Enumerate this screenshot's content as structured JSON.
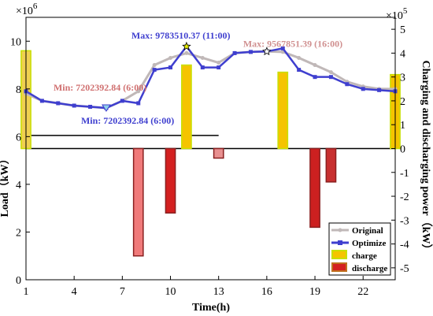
{
  "chart_data": {
    "type": "line+bar",
    "title": "",
    "xlabel": "Time(h)",
    "ylabel_left": "Load（kW）",
    "ylabel_right": "Charging and discharging power（kW）",
    "left_exponent": "×10",
    "left_exponent_power": "6",
    "right_exponent": "×10",
    "right_exponent_power": "5",
    "xlim": [
      1,
      24
    ],
    "ylim_left": [
      0,
      11
    ],
    "ylim_right": [
      -5.5,
      5.5
    ],
    "x_ticks": [
      1,
      4,
      7,
      10,
      13,
      16,
      19,
      22
    ],
    "y_left_ticks": [
      0,
      2,
      4,
      6,
      8,
      10
    ],
    "y_right_ticks": [
      -5,
      -4,
      -3,
      -2,
      -1,
      0,
      1,
      2,
      3,
      4,
      5
    ],
    "x": [
      1,
      2,
      3,
      4,
      5,
      6,
      7,
      8,
      9,
      10,
      11,
      12,
      13,
      14,
      15,
      16,
      17,
      18,
      19,
      20,
      21,
      22,
      23,
      24
    ],
    "series": [
      {
        "name": "Original",
        "color": "#c0b8b8",
        "axis": "left",
        "values": [
          7.8,
          7.5,
          7.4,
          7.3,
          7.25,
          7.2,
          7.5,
          7.9,
          9.0,
          9.3,
          9.5,
          9.3,
          9.1,
          9.5,
          9.55,
          9.57,
          9.55,
          9.3,
          9.0,
          8.7,
          8.3,
          8.1,
          8.0,
          8.0
        ]
      },
      {
        "name": "Optimize",
        "color": "#3f3fcf",
        "axis": "left",
        "values": [
          7.9,
          7.5,
          7.4,
          7.3,
          7.25,
          7.2,
          7.5,
          7.4,
          8.8,
          8.9,
          9.78,
          8.9,
          8.9,
          9.5,
          9.55,
          9.57,
          9.7,
          8.8,
          8.5,
          8.5,
          8.2,
          8.0,
          7.95,
          7.9
        ]
      }
    ],
    "bars": [
      {
        "name": "charge",
        "x": 1,
        "value": 4.1,
        "color": "#f0d050"
      },
      {
        "name": "charge",
        "x": 11,
        "value": 3.5,
        "color": "#f5c400"
      },
      {
        "name": "charge",
        "x": 17,
        "value": 3.2,
        "color": "#f5c400"
      },
      {
        "name": "charge",
        "x": 24,
        "value": 3.1,
        "color": "#f5c400"
      },
      {
        "name": "discharge",
        "x": 8,
        "value": -4.5,
        "color": "#f07a7a"
      },
      {
        "name": "discharge",
        "x": 10,
        "value": -2.7,
        "color": "#d42020"
      },
      {
        "name": "discharge",
        "x": 13,
        "value": -0.4,
        "color": "#e89090"
      },
      {
        "name": "discharge",
        "x": 19,
        "value": -3.3,
        "color": "#cc2020"
      },
      {
        "name": "discharge",
        "x": 20,
        "value": -1.4,
        "color": "#c83030"
      }
    ],
    "annotations": [
      {
        "text": "Max: 9783510.37 (11:00)",
        "color": "#3f3fcf",
        "x": 11,
        "y": 9.78,
        "marker": "star",
        "marker_color": "#e8f000"
      },
      {
        "text": "Max: 9567851.39 (16:00)",
        "color": "#d09090",
        "x": 16,
        "y": 9.57,
        "marker": "star",
        "marker_color": "#ffffff"
      },
      {
        "text": "Min: 7202392.84 (6:00)",
        "color": "#3f3fcf",
        "x": 6,
        "y": 7.2,
        "marker": "triangle",
        "marker_color": "#8fd0e8"
      },
      {
        "text": "Min: 7202392.84 (6:00)",
        "color": "#d07070",
        "x": 6,
        "y": 7.2,
        "marker": "none",
        "marker_color": ""
      }
    ],
    "legend": {
      "placement": "bottom-right",
      "entries": [
        "Original",
        "Optimize",
        "charge",
        "discharge"
      ]
    }
  }
}
